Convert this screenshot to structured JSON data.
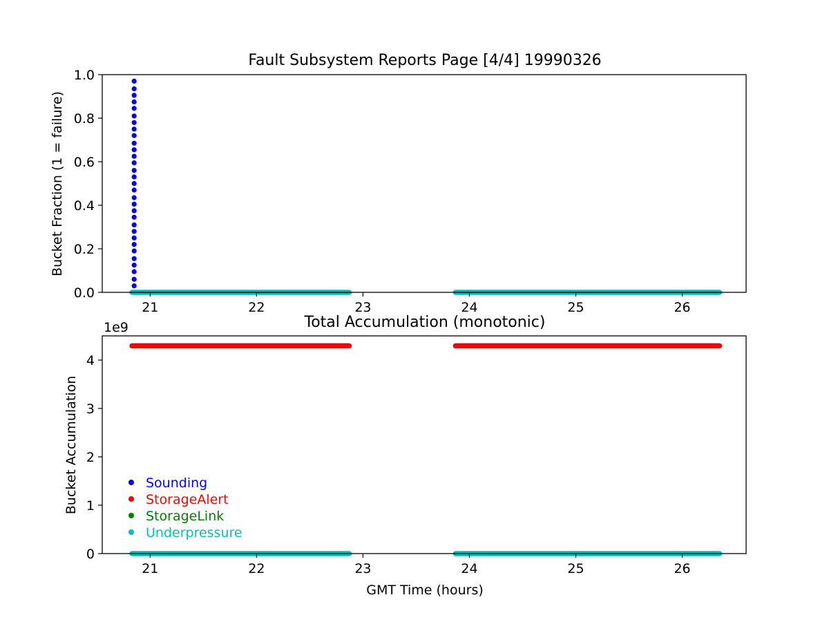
{
  "chart_data": [
    {
      "type": "scatter",
      "title": "Fault Subsystem Reports Page [4/4] 19990326",
      "xlabel": "",
      "ylabel": "Bucket Fraction (1 = failure)",
      "xlim": [
        20.55,
        26.6
      ],
      "ylim": [
        0,
        1.0
      ],
      "xticks": [
        21,
        22,
        23,
        24,
        25,
        26
      ],
      "yticks": [
        0.0,
        0.2,
        0.4,
        0.6,
        0.8,
        1.0
      ],
      "ytick_labels": [
        "0.0",
        "0.2",
        "0.4",
        "0.6",
        "0.8",
        "1.0"
      ],
      "grid": false,
      "series": [
        {
          "name": "Sounding",
          "color": "#0000ff",
          "points": [
            [
              20.85,
              0.03
            ],
            [
              20.85,
              0.06
            ],
            [
              20.85,
              0.095
            ],
            [
              20.85,
              0.125
            ],
            [
              20.85,
              0.155
            ],
            [
              20.85,
              0.19
            ],
            [
              20.85,
              0.22
            ],
            [
              20.85,
              0.25
            ],
            [
              20.85,
              0.28
            ],
            [
              20.85,
              0.31
            ],
            [
              20.85,
              0.345
            ],
            [
              20.85,
              0.375
            ],
            [
              20.85,
              0.405
            ],
            [
              20.85,
              0.435
            ],
            [
              20.85,
              0.47
            ],
            [
              20.85,
              0.5
            ],
            [
              20.85,
              0.53
            ],
            [
              20.85,
              0.56
            ],
            [
              20.85,
              0.595
            ],
            [
              20.85,
              0.625
            ],
            [
              20.85,
              0.655
            ],
            [
              20.85,
              0.685
            ],
            [
              20.85,
              0.72
            ],
            [
              20.85,
              0.75
            ],
            [
              20.85,
              0.78
            ],
            [
              20.85,
              0.81
            ],
            [
              20.85,
              0.845
            ],
            [
              20.85,
              0.875
            ],
            [
              20.85,
              0.905
            ],
            [
              20.85,
              0.935
            ],
            [
              20.85,
              0.97
            ]
          ]
        },
        {
          "name": "StorageAlert",
          "color": "#ff0000",
          "segments": []
        },
        {
          "name": "StorageLink",
          "color": "#008000",
          "segments": []
        },
        {
          "name": "Underpressure",
          "color": "#00bfbf",
          "segments": [
            {
              "x_start": 20.83,
              "x_end": 22.87,
              "y": 0
            },
            {
              "x_start": 23.87,
              "x_end": 26.35,
              "y": 0
            }
          ]
        }
      ]
    },
    {
      "type": "scatter",
      "title": "Total Accumulation (monotonic)",
      "xlabel": "GMT Time (hours)",
      "ylabel": "Bucket Accumulation",
      "offset_text": "1e9",
      "xlim": [
        20.55,
        26.6
      ],
      "ylim": [
        0,
        4.5
      ],
      "xticks": [
        21,
        22,
        23,
        24,
        25,
        26
      ],
      "yticks": [
        0,
        1,
        2,
        3,
        4
      ],
      "grid": false,
      "legend": {
        "placement": "lower-left"
      },
      "series": [
        {
          "name": "Sounding",
          "color": "#0000ff",
          "segments": []
        },
        {
          "name": "StorageAlert",
          "color": "#ff0000",
          "segments": [
            {
              "x_start": 20.83,
              "x_end": 22.87,
              "y": 4.295
            },
            {
              "x_start": 23.87,
              "x_end": 26.35,
              "y": 4.295
            }
          ]
        },
        {
          "name": "StorageLink",
          "color": "#008000",
          "segments": []
        },
        {
          "name": "Underpressure",
          "color": "#00bfbf",
          "segments": [
            {
              "x_start": 20.83,
              "x_end": 22.87,
              "y": 0
            },
            {
              "x_start": 23.87,
              "x_end": 26.35,
              "y": 0
            }
          ]
        }
      ]
    }
  ]
}
